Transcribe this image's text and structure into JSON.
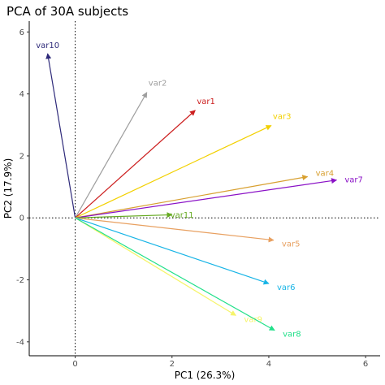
{
  "chart_data": {
    "type": "biplot-vectors",
    "title": "PCA of 30A subjects",
    "xlabel": "PC1 (26.3%)",
    "ylabel": "PC2 (17.9%)",
    "xlim": [
      -0.95,
      6.3
    ],
    "ylim": [
      -4.45,
      6.35
    ],
    "x_ticks": [
      0,
      2,
      4,
      6
    ],
    "y_ticks": [
      -4,
      -2,
      0,
      2,
      4,
      6
    ],
    "reference_lines": {
      "x": 0,
      "y": 0,
      "style": "dotted"
    },
    "grid": false,
    "vectors": [
      {
        "name": "var10",
        "x": -0.57,
        "y": 5.3,
        "color": "#2E2A7A"
      },
      {
        "name": "var2",
        "x": 1.48,
        "y": 4.05,
        "color": "#9E9E9E"
      },
      {
        "name": "var1",
        "x": 2.48,
        "y": 3.47,
        "color": "#CC1F1F"
      },
      {
        "name": "var3",
        "x": 4.05,
        "y": 2.98,
        "color": "#F2D000"
      },
      {
        "name": "var4",
        "x": 4.8,
        "y": 1.33,
        "color": "#D8A030"
      },
      {
        "name": "var7",
        "x": 5.4,
        "y": 1.22,
        "color": "#8A11C6"
      },
      {
        "name": "var11",
        "x": 2.0,
        "y": 0.1,
        "color": "#66AA22"
      },
      {
        "name": "var5",
        "x": 4.1,
        "y": -0.72,
        "color": "#E8A060"
      },
      {
        "name": "var6",
        "x": 4.0,
        "y": -2.12,
        "color": "#17B4E6"
      },
      {
        "name": "var9",
        "x": 3.32,
        "y": -3.15,
        "color": "#F6F46A"
      },
      {
        "name": "var8",
        "x": 4.12,
        "y": -3.63,
        "color": "#22E08A"
      }
    ]
  }
}
